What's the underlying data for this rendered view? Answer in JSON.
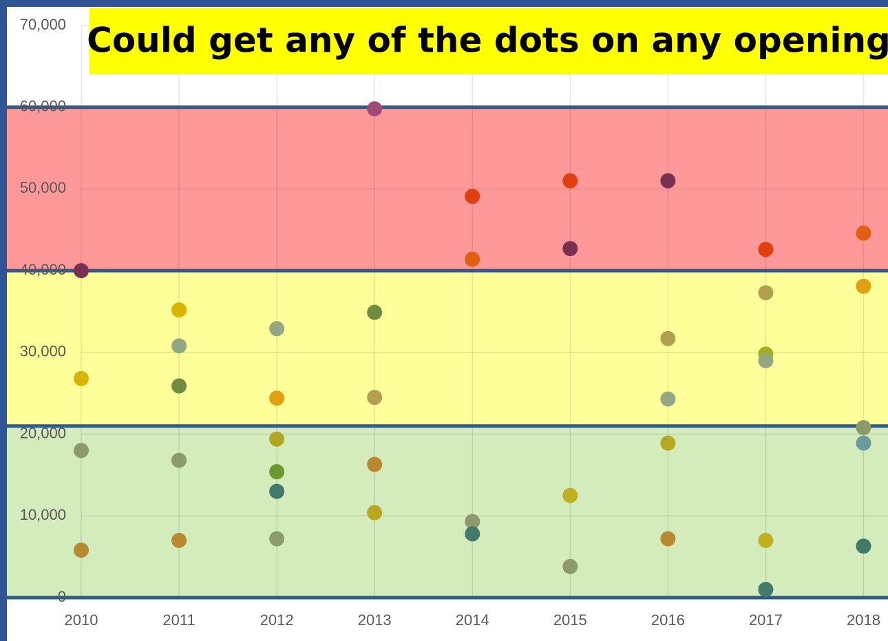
{
  "chart_data": {
    "type": "scatter",
    "annotation": "Could get any of the dots on any opening",
    "xlim": [
      2010,
      2018.25
    ],
    "ylim": [
      0,
      70000
    ],
    "xticks": [
      2010,
      2011,
      2012,
      2013,
      2014,
      2015,
      2016,
      2017,
      2018
    ],
    "yticks": [
      0,
      {
        "value": 10000,
        "label": "10,000"
      },
      {
        "value": 20000,
        "label": "20,000"
      },
      {
        "value": 30000,
        "label": "30,000"
      },
      {
        "value": 40000,
        "label": "40,000"
      },
      {
        "value": 50000,
        "label": "50,000"
      },
      {
        "value": 60000,
        "label": "60,000"
      },
      {
        "value": 70000,
        "label": "70,000"
      }
    ],
    "grid": true,
    "bands": [
      {
        "from": 40000,
        "to": 60000,
        "color": "#ff9999"
      },
      {
        "from": 21000,
        "to": 40000,
        "color": "#ffff99"
      },
      {
        "from": 0,
        "to": 21000,
        "color": "#d4ebbc"
      }
    ],
    "x": [
      2010,
      2010,
      2010,
      2010,
      2011,
      2011,
      2011,
      2011,
      2011,
      2012,
      2012,
      2012,
      2012,
      2012,
      2012,
      2013,
      2013,
      2013,
      2013,
      2013,
      2014,
      2014,
      2014,
      2014,
      2015,
      2015,
      2015,
      2015,
      2016,
      2016,
      2016,
      2016,
      2016,
      2017,
      2017,
      2017,
      2017,
      2017,
      2017,
      2018,
      2018,
      2018,
      2018,
      2018
    ],
    "values": [
      40000,
      26800,
      18000,
      5800,
      35200,
      30800,
      25900,
      16800,
      7000,
      32900,
      24400,
      19400,
      15400,
      13000,
      7200,
      59800,
      34900,
      24500,
      16300,
      10400,
      49100,
      41400,
      9300,
      7800,
      51000,
      42700,
      12500,
      3800,
      51000,
      31700,
      24300,
      18900,
      7200,
      42600,
      37300,
      29800,
      29000,
      7000,
      1000,
      44600,
      38100,
      20800,
      18900,
      6300
    ],
    "colors": [
      "#7a3050",
      "#d9b400",
      "#8a9a6a",
      "#b88a30",
      "#d9b400",
      "#93a882",
      "#718c40",
      "#8a9a6a",
      "#b88a30",
      "#93a882",
      "#e0a010",
      "#b0a820",
      "#6a9a30",
      "#3f7a6a",
      "#8a9a6a",
      "#a04a7a",
      "#718c40",
      "#b0a050",
      "#b88a30",
      "#b8a820",
      "#e04010",
      "#e06010",
      "#8a9a6a",
      "#3f7a6a",
      "#e04010",
      "#7a3050",
      "#c0b020",
      "#8a9a6a",
      "#7a3050",
      "#b0a050",
      "#93a882",
      "#b8a820",
      "#b88a30",
      "#e04010",
      "#b0a050",
      "#a0b020",
      "#93a882",
      "#c0b020",
      "#3f7a6a",
      "#e06010",
      "#e0a010",
      "#8a9a6a",
      "#6a9aa0",
      "#3f7a6a"
    ]
  }
}
